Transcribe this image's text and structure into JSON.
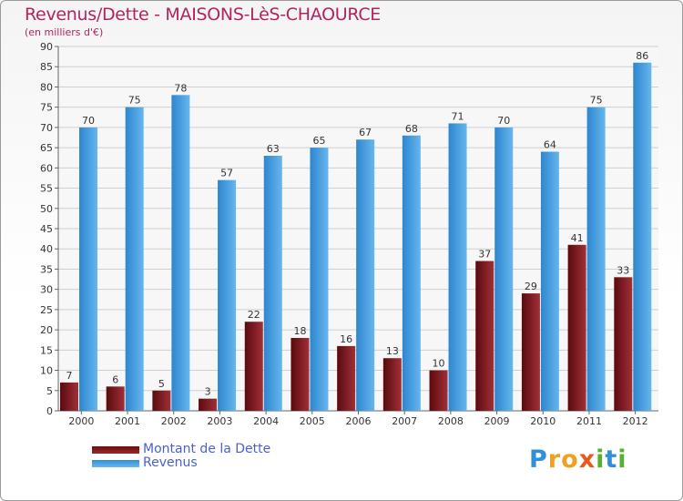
{
  "title": "Revenus/Dette - MAISONS-LèS-CHAOURCE",
  "subtitle": "(en milliers d'€)",
  "logo": {
    "letters": [
      {
        "ch": "P",
        "color": "#2f8fd8"
      },
      {
        "ch": "r",
        "color": "#f0a020"
      },
      {
        "ch": "o",
        "color": "#f0a020"
      },
      {
        "ch": "x",
        "color": "#e8581c"
      },
      {
        "ch": "i",
        "color": "#57b030"
      },
      {
        "ch": "t",
        "color": "#2f8fd8"
      },
      {
        "ch": "i",
        "color": "#57b030"
      }
    ]
  },
  "legend": [
    {
      "label": "Montant de la Dette",
      "color": "#6b0b0b"
    },
    {
      "label": "Revenus",
      "color": "#4aa6e8"
    }
  ],
  "chart_data": {
    "type": "bar",
    "title": "Revenus/Dette - MAISONS-LèS-CHAOURCE",
    "subtitle": "(en milliers d'€)",
    "categories": [
      "2000",
      "2001",
      "2002",
      "2003",
      "2004",
      "2005",
      "2006",
      "2007",
      "2008",
      "2009",
      "2010",
      "2011",
      "2012"
    ],
    "series": [
      {
        "name": "Montant de la Dette",
        "color": "#7a1a1f",
        "values": [
          7,
          6,
          5,
          3,
          22,
          18,
          16,
          13,
          10,
          37,
          29,
          41,
          33
        ]
      },
      {
        "name": "Revenus",
        "color": "#4aa6e8",
        "values": [
          70,
          75,
          78,
          57,
          63,
          65,
          67,
          68,
          71,
          70,
          64,
          75,
          86
        ]
      }
    ],
    "ylim": [
      0,
      90
    ],
    "yticks": [
      0,
      5,
      10,
      15,
      20,
      25,
      30,
      35,
      40,
      45,
      50,
      55,
      60,
      65,
      70,
      75,
      80,
      85,
      90
    ],
    "grid": true,
    "legend_position": "bottom-left"
  }
}
